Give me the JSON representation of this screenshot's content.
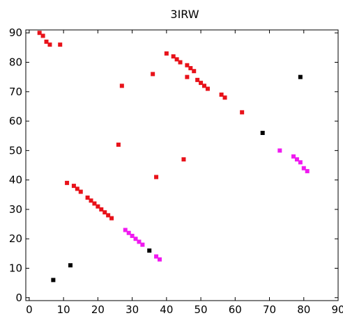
{
  "chart_data": {
    "type": "scatter",
    "title": "3IRW",
    "xlabel": "",
    "ylabel": "",
    "xlim": [
      -1,
      90
    ],
    "ylim": [
      -1,
      91
    ],
    "xticks": [
      "0",
      "10",
      "20",
      "30",
      "40",
      "50",
      "60",
      "70",
      "80",
      "90"
    ],
    "yticks": [
      "0",
      "10",
      "20",
      "30",
      "40",
      "50",
      "60",
      "70",
      "80",
      "90"
    ],
    "grid": false,
    "legend": "none",
    "marker": "square",
    "series": [
      {
        "color": "#e8121a",
        "points": [
          [
            3,
            90
          ],
          [
            4,
            89
          ],
          [
            5,
            87
          ],
          [
            6,
            86
          ],
          [
            9,
            86
          ],
          [
            11,
            39
          ],
          [
            13,
            38
          ],
          [
            14,
            37
          ],
          [
            15,
            36
          ],
          [
            17,
            34
          ],
          [
            18,
            33
          ],
          [
            19,
            32
          ],
          [
            20,
            31
          ],
          [
            21,
            30
          ],
          [
            22,
            29
          ],
          [
            23,
            28
          ],
          [
            24,
            27
          ],
          [
            26,
            52
          ],
          [
            27,
            72
          ],
          [
            36,
            76
          ],
          [
            37,
            41
          ],
          [
            40,
            83
          ],
          [
            42,
            82
          ],
          [
            43,
            81
          ],
          [
            44,
            80
          ],
          [
            45,
            47
          ],
          [
            46,
            79
          ],
          [
            46,
            75
          ],
          [
            47,
            78
          ],
          [
            48,
            77
          ],
          [
            49,
            74
          ],
          [
            50,
            73
          ],
          [
            51,
            72
          ],
          [
            52,
            71
          ],
          [
            56,
            69
          ],
          [
            57,
            68
          ],
          [
            62,
            63
          ]
        ]
      },
      {
        "color": "#f01af0",
        "points": [
          [
            28,
            23
          ],
          [
            29,
            22
          ],
          [
            30,
            21
          ],
          [
            31,
            20
          ],
          [
            32,
            19
          ],
          [
            33,
            18
          ],
          [
            37,
            14
          ],
          [
            38,
            13
          ],
          [
            73,
            50
          ],
          [
            77,
            48
          ],
          [
            78,
            47
          ],
          [
            79,
            46
          ],
          [
            80,
            44
          ],
          [
            81,
            43
          ]
        ]
      },
      {
        "color": "#000000",
        "points": [
          [
            7,
            6
          ],
          [
            12,
            11
          ],
          [
            35,
            16
          ],
          [
            68,
            56
          ],
          [
            79,
            75
          ]
        ]
      }
    ]
  }
}
